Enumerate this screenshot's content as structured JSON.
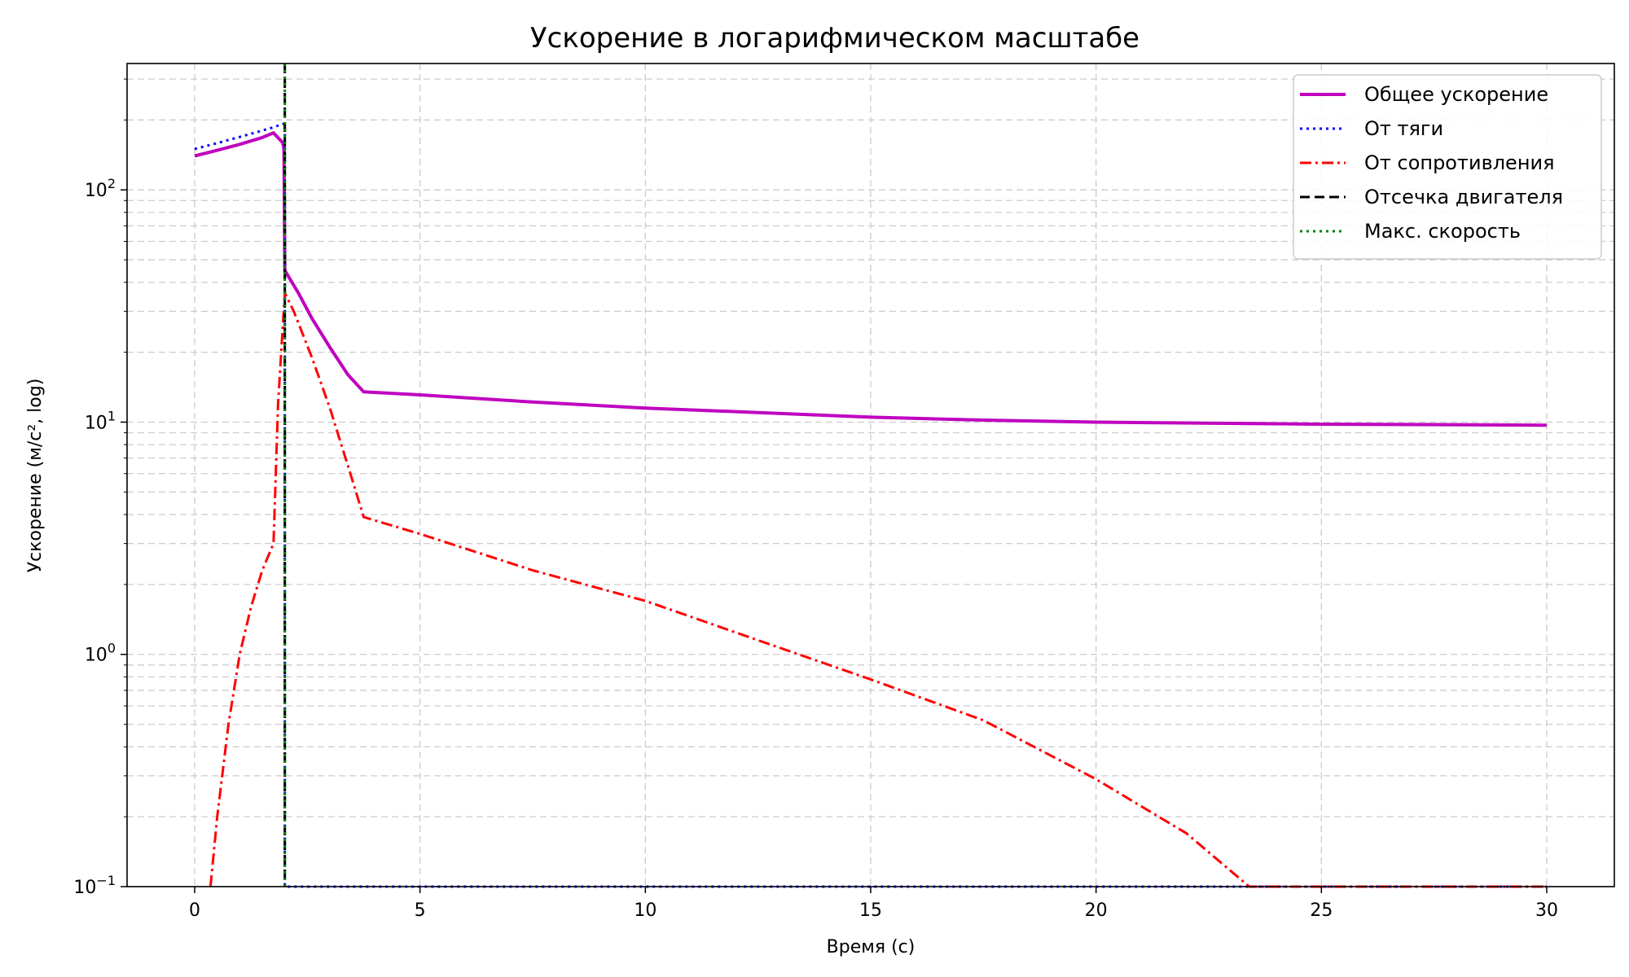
{
  "chart_data": {
    "type": "line",
    "title": "Ускорение в логарифмическом масштабе",
    "xlabel": "Время (с)",
    "ylabel": "Ускорение (м/с², log)",
    "xlim": [
      -1.5,
      31.5
    ],
    "ylim": [
      0.1,
      350
    ],
    "y_scale": "log",
    "grid": true,
    "legend_position": "top-right",
    "x_ticks": [
      0,
      5,
      10,
      15,
      20,
      25,
      30
    ],
    "y_ticks": [
      {
        "base": "10",
        "exp": "−1",
        "value": 0.1
      },
      {
        "base": "10",
        "exp": "0",
        "value": 1
      },
      {
        "base": "10",
        "exp": "1",
        "value": 10
      },
      {
        "base": "10",
        "exp": "2",
        "value": 100
      }
    ],
    "series": [
      {
        "name": "Общее ускорение",
        "color": "#bf00bf",
        "style": "solid",
        "x": [
          0,
          0.5,
          1.0,
          1.5,
          1.75,
          1.95,
          1.98,
          2.0,
          2.3,
          2.6,
          3.0,
          3.4,
          3.75,
          5,
          7.5,
          10,
          12.5,
          15,
          17.5,
          20,
          25,
          30
        ],
        "y": [
          140,
          148,
          157,
          168,
          176,
          160,
          150,
          45,
          36,
          28,
          21,
          16,
          13.5,
          13.1,
          12.2,
          11.5,
          11.0,
          10.5,
          10.2,
          10.0,
          9.8,
          9.7
        ]
      },
      {
        "name": "От тяги",
        "color": "#0000ff",
        "style": "dotted",
        "x": [
          0,
          0.5,
          1.0,
          1.5,
          1.75,
          1.95,
          2.0,
          2.001,
          30
        ],
        "y": [
          150,
          159,
          169,
          180,
          186,
          192,
          193,
          0.1,
          0.1
        ]
      },
      {
        "name": "От сопротивления",
        "color": "#ff0000",
        "style": "dashdot",
        "x": [
          0.35,
          0.5,
          0.75,
          1.0,
          1.25,
          1.5,
          1.75,
          1.85,
          2.0,
          2.2,
          2.6,
          3.0,
          3.4,
          3.75,
          5,
          7.5,
          10,
          12.5,
          15,
          17.5,
          20,
          22,
          23.4,
          25,
          30
        ],
        "y": [
          0.1,
          0.2,
          0.5,
          1.0,
          1.6,
          2.3,
          3.0,
          12,
          36,
          30,
          19,
          11.5,
          6.5,
          3.9,
          3.3,
          2.3,
          1.7,
          1.15,
          0.78,
          0.52,
          0.29,
          0.17,
          0.1,
          0.1,
          0.1
        ]
      },
      {
        "name": "Отсечка двигателя",
        "color": "#000000",
        "style": "dashed",
        "vline": 2.0
      },
      {
        "name": "Макс. скорость",
        "color": "#008000",
        "style": "dotted",
        "vline": 2.0
      }
    ]
  }
}
